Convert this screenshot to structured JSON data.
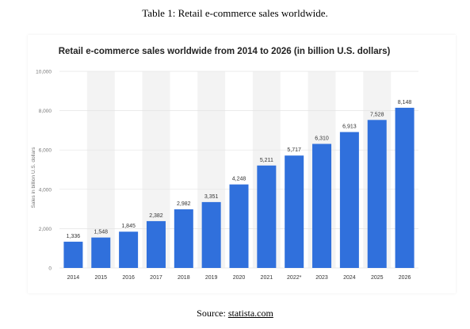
{
  "caption": "Table 1: Retail e-commerce sales worldwide.",
  "source": {
    "prefix": "Source: ",
    "link_text": "statista.com"
  },
  "colors": {
    "bar": "#3070dc",
    "band": "#f3f3f3",
    "grid": "#e4e4e4",
    "tick_text": "#777777",
    "value_text": "#333333",
    "title_text": "#222222"
  },
  "chart_data": {
    "type": "bar",
    "title": "Retail e-commerce sales worldwide from 2014 to 2026 (in billion U.S. dollars)",
    "ylabel": "Sales in billion U.S. dollars",
    "xlabel": "",
    "categories": [
      "2014",
      "2015",
      "2016",
      "2017",
      "2018",
      "2019",
      "2020",
      "2021",
      "2022*",
      "2023",
      "2024",
      "2025",
      "2026"
    ],
    "values": [
      1336,
      1548,
      1845,
      2382,
      2982,
      3351,
      4248,
      5211,
      5717,
      6310,
      6913,
      7528,
      8148
    ],
    "value_labels": [
      "1,336",
      "1,548",
      "1,845",
      "2,382",
      "2,982",
      "3,351",
      "4,248",
      "5,211",
      "5,717",
      "6,310",
      "6,913",
      "7,528",
      "8,148"
    ],
    "ylim": [
      0,
      10000
    ],
    "yticks": [
      0,
      2000,
      4000,
      6000,
      8000,
      10000
    ],
    "ytick_labels": [
      "0",
      "2,000",
      "4,000",
      "6,000",
      "8,000",
      "10,000"
    ],
    "grid": true,
    "legend": "none"
  }
}
